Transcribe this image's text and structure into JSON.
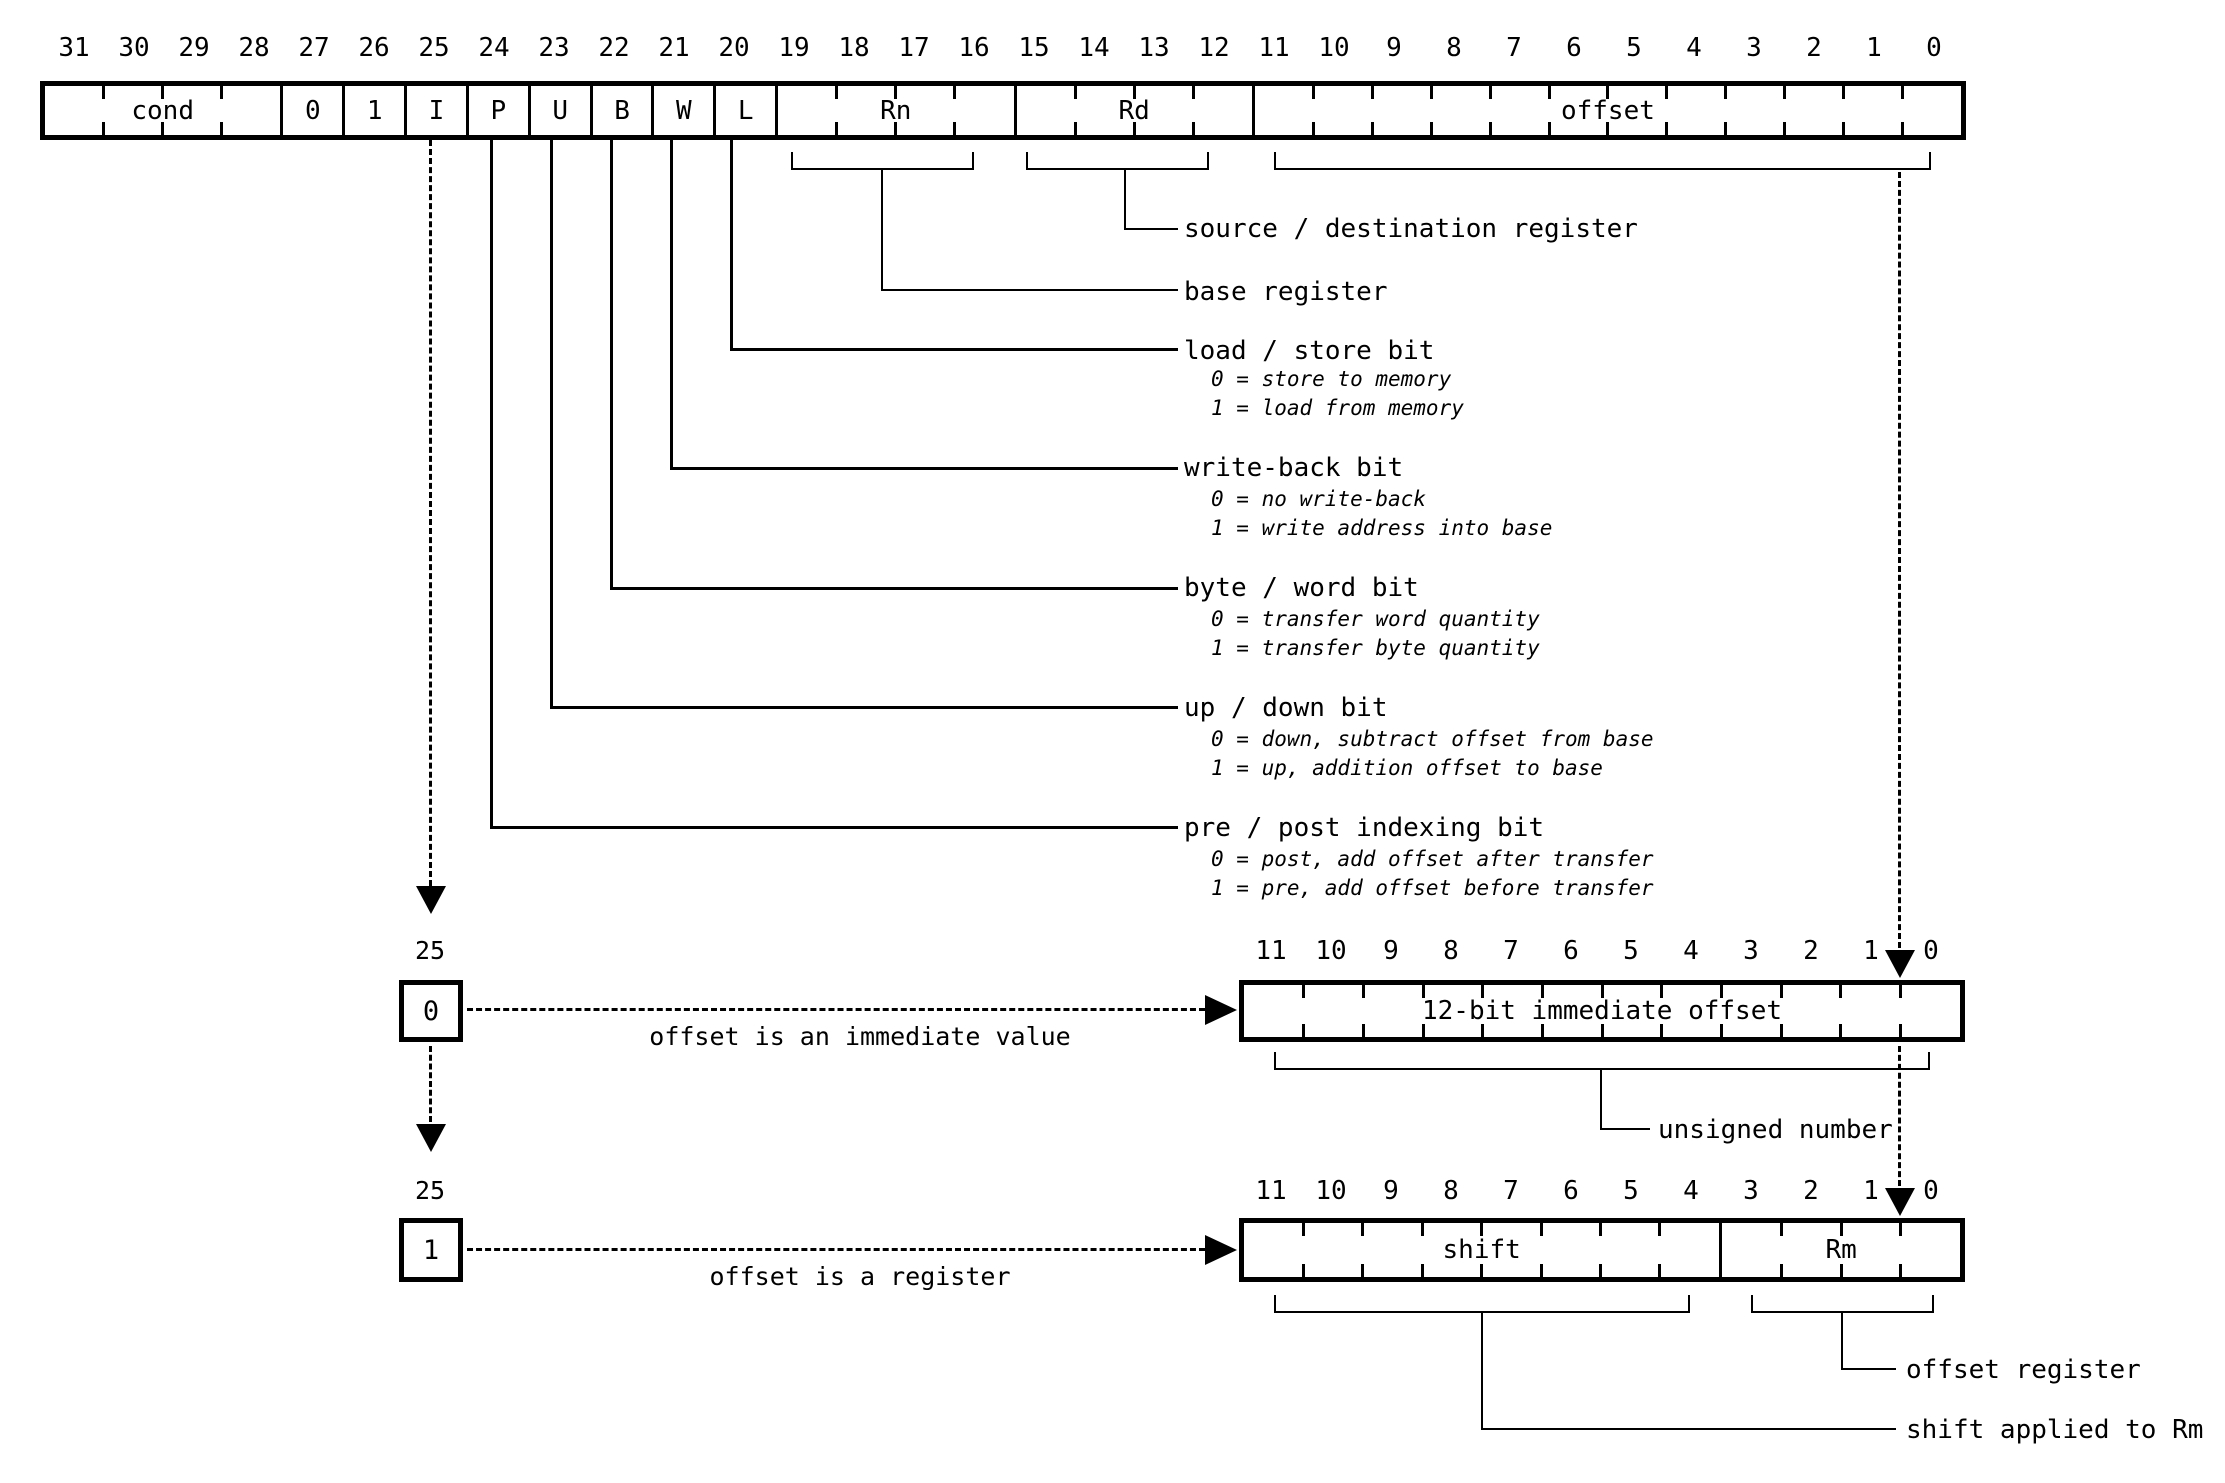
{
  "colors": {
    "background": "#ffffff",
    "ink": "#000000"
  },
  "top_register": {
    "bit_numbers": [
      "31",
      "30",
      "29",
      "28",
      "27",
      "26",
      "25",
      "24",
      "23",
      "22",
      "21",
      "20",
      "19",
      "18",
      "17",
      "16",
      "15",
      "14",
      "13",
      "12",
      "11",
      "10",
      "9",
      "8",
      "7",
      "6",
      "5",
      "4",
      "3",
      "2",
      "1",
      "0"
    ],
    "fields": [
      {
        "label": "cond",
        "bits": 4
      },
      {
        "label": "0",
        "bits": 1
      },
      {
        "label": "1",
        "bits": 1
      },
      {
        "label": "I",
        "bits": 1
      },
      {
        "label": "P",
        "bits": 1
      },
      {
        "label": "U",
        "bits": 1
      },
      {
        "label": "B",
        "bits": 1
      },
      {
        "label": "W",
        "bits": 1
      },
      {
        "label": "L",
        "bits": 1
      },
      {
        "label": "Rn",
        "bits": 4
      },
      {
        "label": "Rd",
        "bits": 4
      },
      {
        "label": "offset",
        "bits": 12
      }
    ]
  },
  "annotations": [
    {
      "label": "source / destination register",
      "details": []
    },
    {
      "label": "base register",
      "details": []
    },
    {
      "label": "load / store bit",
      "details": [
        "0 = store to memory",
        "1 = load from memory"
      ]
    },
    {
      "label": "write-back bit",
      "details": [
        "0 = no write-back",
        "1 = write address into base"
      ]
    },
    {
      "label": "byte / word bit",
      "details": [
        "0 = transfer word quantity",
        "1 = transfer byte quantity"
      ]
    },
    {
      "label": "up / down bit",
      "details": [
        "0 = down, subtract offset from base",
        "1 = up, addition offset to base"
      ]
    },
    {
      "label": "pre / post indexing bit",
      "details": [
        "0 = post, add offset after transfer",
        "1 = pre, add offset before transfer"
      ]
    }
  ],
  "immediate_variant": {
    "bit_label": "25",
    "selector_value": "0",
    "caption": "offset is an immediate value",
    "bit_numbers": [
      "11",
      "10",
      "9",
      "8",
      "7",
      "6",
      "5",
      "4",
      "3",
      "2",
      "1",
      "0"
    ],
    "field_label": "12-bit immediate offset",
    "note": "unsigned number"
  },
  "register_variant": {
    "bit_label": "25",
    "selector_value": "1",
    "caption": "offset is a register",
    "bit_numbers": [
      "11",
      "10",
      "9",
      "8",
      "7",
      "6",
      "5",
      "4",
      "3",
      "2",
      "1",
      "0"
    ],
    "fields": [
      {
        "label": "shift",
        "bits": 8
      },
      {
        "label": "Rm",
        "bits": 4
      }
    ],
    "notes": [
      "offset register",
      "shift applied to Rm"
    ]
  }
}
